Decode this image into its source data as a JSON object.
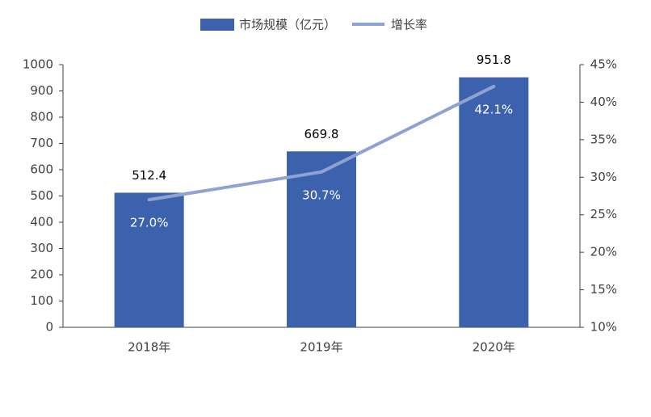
{
  "chart_data": {
    "type": "bar",
    "categories": [
      "2018年",
      "2019年",
      "2020年"
    ],
    "series": [
      {
        "name": "市场规模（亿元）",
        "color": "#3d62ad",
        "values": [
          512.4,
          669.8,
          951.8
        ]
      },
      {
        "name": "增长率",
        "type": "line",
        "axis": "y2",
        "color": "#8fa3d3",
        "values": [
          27.0,
          30.7,
          42.1
        ],
        "value_labels": [
          "27.0%",
          "30.7%",
          "42.1%"
        ]
      }
    ],
    "ylim": [
      0,
      1000
    ],
    "yticks": [
      0,
      100,
      200,
      300,
      400,
      500,
      600,
      700,
      800,
      900,
      1000
    ],
    "y2lim": [
      10,
      45
    ],
    "y2ticks": [
      {
        "value": 10,
        "label": "10%"
      },
      {
        "value": 15,
        "label": "15%"
      },
      {
        "value": 20,
        "label": "20%"
      },
      {
        "value": 25,
        "label": "25%"
      },
      {
        "value": 30,
        "label": "30%"
      },
      {
        "value": 35,
        "label": "35%"
      },
      {
        "value": 40,
        "label": "40%"
      },
      {
        "value": 45,
        "label": "45%"
      }
    ],
    "legend": "top"
  }
}
